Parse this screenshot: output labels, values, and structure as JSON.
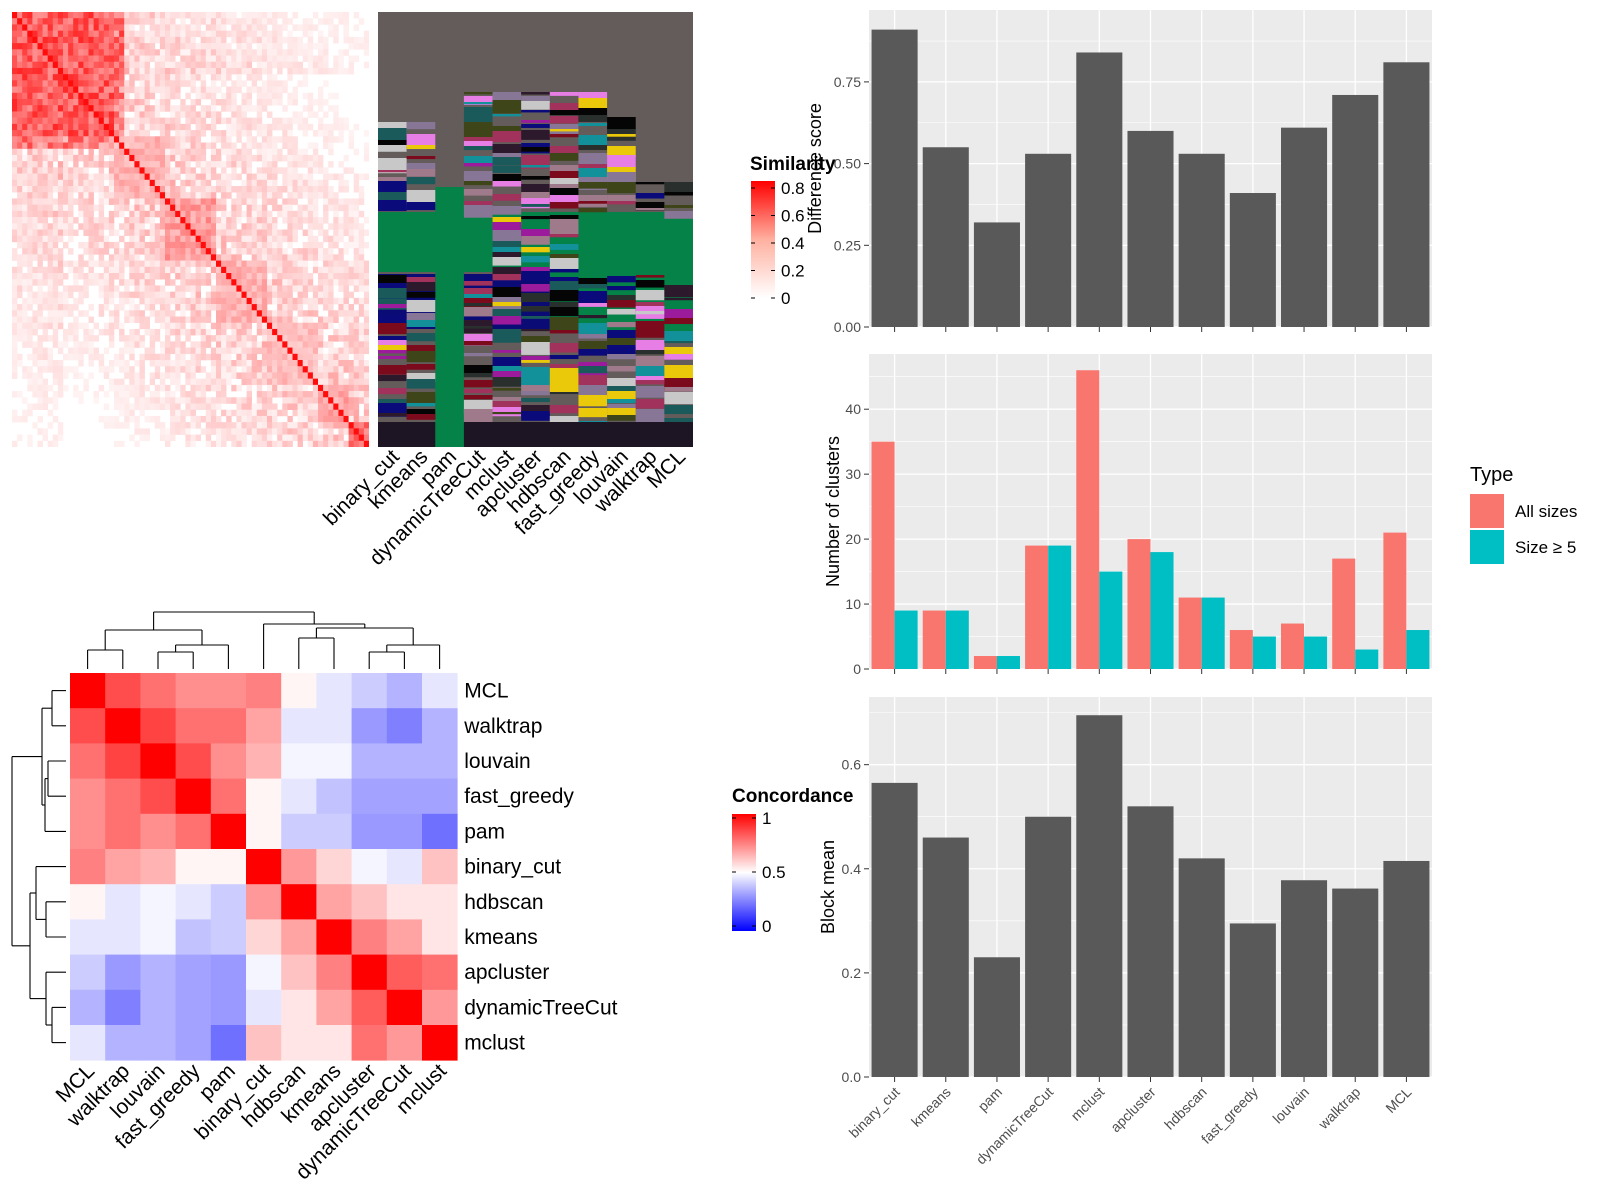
{
  "colors": {
    "bar": "#595959",
    "panel_bg": "#ebebeb",
    "grid": "#ffffff",
    "all_sizes": "#f8766d",
    "size_ge5": "#00bfc4",
    "heat_high": "#ff0000",
    "heat_mid": "#ffffff",
    "heat_low": "#0000ff"
  },
  "chart_data": [
    {
      "id": "similarity_heatmap",
      "type": "heatmap",
      "legend_title": "Similarity",
      "legend_ticks": [
        "0.8",
        "0.6",
        "0.4",
        "0.2",
        "0"
      ],
      "column_labels": [
        "binary_cut",
        "kmeans",
        "pam",
        "dynamicTreeCut",
        "mclust",
        "apcluster",
        "hdbscan",
        "fast_greedy",
        "louvain",
        "walktrap",
        "MCL"
      ]
    },
    {
      "id": "concordance_heatmap",
      "type": "heatmap",
      "legend_title": "Concordance",
      "legend_ticks": [
        "1",
        "0.5",
        "0"
      ],
      "rows": [
        "MCL",
        "walktrap",
        "louvain",
        "fast_greedy",
        "pam",
        "binary_cut",
        "hdbscan",
        "kmeans",
        "apcluster",
        "dynamicTreeCut",
        "mclust"
      ],
      "cols": [
        "MCL",
        "walktrap",
        "louvain",
        "fast_greedy",
        "pam",
        "binary_cut",
        "hdbscan",
        "kmeans",
        "apcluster",
        "dynamicTreeCut",
        "mclust"
      ],
      "values": [
        [
          1.0,
          0.85,
          0.78,
          0.72,
          0.72,
          0.75,
          0.52,
          0.45,
          0.4,
          0.35,
          0.45
        ],
        [
          0.85,
          1.0,
          0.87,
          0.78,
          0.78,
          0.68,
          0.45,
          0.45,
          0.3,
          0.25,
          0.35
        ],
        [
          0.78,
          0.87,
          1.0,
          0.85,
          0.72,
          0.65,
          0.48,
          0.48,
          0.35,
          0.35,
          0.35
        ],
        [
          0.72,
          0.78,
          0.85,
          1.0,
          0.78,
          0.52,
          0.45,
          0.38,
          0.32,
          0.32,
          0.32
        ],
        [
          0.72,
          0.78,
          0.72,
          0.78,
          1.0,
          0.52,
          0.4,
          0.4,
          0.3,
          0.3,
          0.22
        ],
        [
          0.75,
          0.68,
          0.65,
          0.52,
          0.52,
          1.0,
          0.7,
          0.58,
          0.48,
          0.45,
          0.62
        ],
        [
          0.52,
          0.45,
          0.48,
          0.45,
          0.4,
          0.7,
          1.0,
          0.68,
          0.62,
          0.55,
          0.55
        ],
        [
          0.45,
          0.45,
          0.48,
          0.38,
          0.4,
          0.58,
          0.68,
          1.0,
          0.75,
          0.68,
          0.55
        ],
        [
          0.4,
          0.3,
          0.35,
          0.32,
          0.3,
          0.48,
          0.62,
          0.75,
          1.0,
          0.82,
          0.78
        ],
        [
          0.35,
          0.25,
          0.35,
          0.32,
          0.3,
          0.45,
          0.55,
          0.68,
          0.82,
          1.0,
          0.7
        ],
        [
          0.45,
          0.35,
          0.35,
          0.32,
          0.22,
          0.62,
          0.55,
          0.55,
          0.78,
          0.7,
          1.0
        ]
      ]
    },
    {
      "id": "difference_score",
      "type": "bar",
      "ylabel": "Difference score",
      "categories": [
        "binary_cut",
        "kmeans",
        "pam",
        "dynamicTreeCut",
        "mclust",
        "apcluster",
        "hdbscan",
        "fast_greedy",
        "louvain",
        "walktrap",
        "MCL"
      ],
      "values": [
        0.91,
        0.55,
        0.32,
        0.53,
        0.84,
        0.6,
        0.53,
        0.41,
        0.61,
        0.71,
        0.81
      ],
      "ylim": [
        0,
        0.97
      ],
      "yticks": [
        0,
        0.25,
        0.5,
        0.75
      ],
      "ytick_labels": [
        "0.00",
        "0.25",
        "0.50",
        "0.75"
      ]
    },
    {
      "id": "number_of_clusters",
      "type": "bar",
      "ylabel": "Number of clusters",
      "categories": [
        "binary_cut",
        "kmeans",
        "pam",
        "dynamicTreeCut",
        "mclust",
        "apcluster",
        "hdbscan",
        "fast_greedy",
        "louvain",
        "walktrap",
        "MCL"
      ],
      "series": [
        {
          "name": "All sizes",
          "values": [
            35,
            9,
            2,
            19,
            46,
            20,
            11,
            6,
            7,
            17,
            21
          ]
        },
        {
          "name": "Size ≥ 5",
          "values": [
            9,
            9,
            2,
            19,
            15,
            18,
            11,
            5,
            5,
            3,
            6
          ]
        }
      ],
      "ylim": [
        0,
        48.5
      ],
      "yticks": [
        0,
        10,
        20,
        30,
        40
      ],
      "ytick_labels": [
        "0",
        "10",
        "20",
        "30",
        "40"
      ],
      "legend": {
        "title": "Type",
        "position": "right"
      }
    },
    {
      "id": "block_mean",
      "type": "bar",
      "ylabel": "Block mean",
      "categories": [
        "binary_cut",
        "kmeans",
        "pam",
        "dynamicTreeCut",
        "mclust",
        "apcluster",
        "hdbscan",
        "fast_greedy",
        "louvain",
        "walktrap",
        "MCL"
      ],
      "values": [
        0.565,
        0.46,
        0.23,
        0.5,
        0.695,
        0.52,
        0.42,
        0.295,
        0.378,
        0.362,
        0.415
      ],
      "ylim": [
        0,
        0.73
      ],
      "yticks": [
        0,
        0.2,
        0.4,
        0.6
      ],
      "ytick_labels": [
        "0.0",
        "0.2",
        "0.4",
        "0.6"
      ]
    }
  ]
}
